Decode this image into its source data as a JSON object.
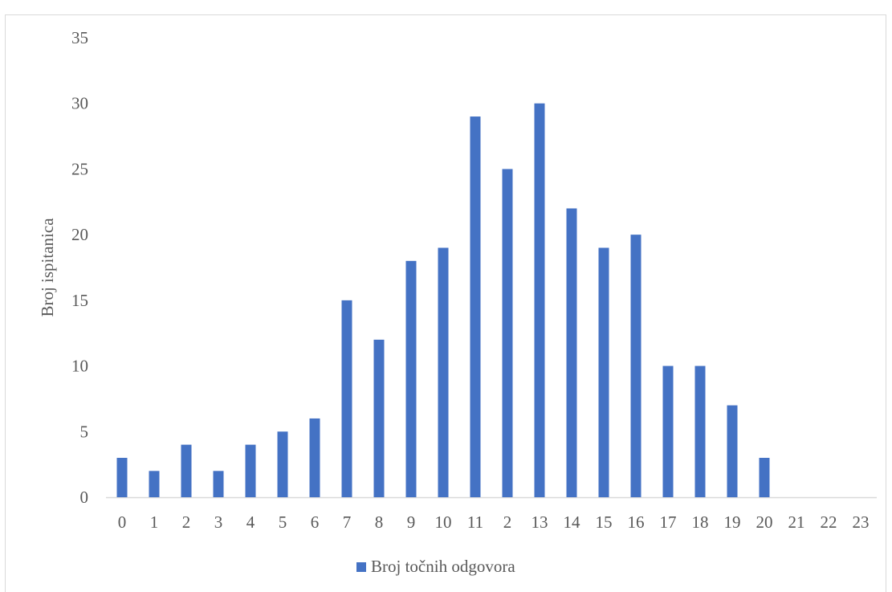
{
  "chart_data": {
    "type": "bar",
    "title": "",
    "xlabel": "",
    "ylabel": "Broj ispitanica",
    "categories": [
      "0",
      "1",
      "2",
      "3",
      "4",
      "5",
      "6",
      "7",
      "8",
      "9",
      "10",
      "11",
      "2",
      "13",
      "14",
      "15",
      "16",
      "17",
      "18",
      "19",
      "20",
      "21",
      "22",
      "23"
    ],
    "series": [
      {
        "name": "Broj točnih odgovora",
        "values": [
          3,
          2,
          4,
          2,
          4,
          5,
          6,
          15,
          12,
          18,
          19,
          29,
          25,
          30,
          22,
          19,
          20,
          10,
          10,
          7,
          3,
          0,
          0,
          0
        ],
        "color": "#4472c4"
      }
    ],
    "ylim": [
      0,
      35
    ],
    "yticks": [
      0,
      5,
      10,
      15,
      20,
      25,
      30,
      35
    ],
    "grid": false,
    "legend_position": "bottom"
  }
}
